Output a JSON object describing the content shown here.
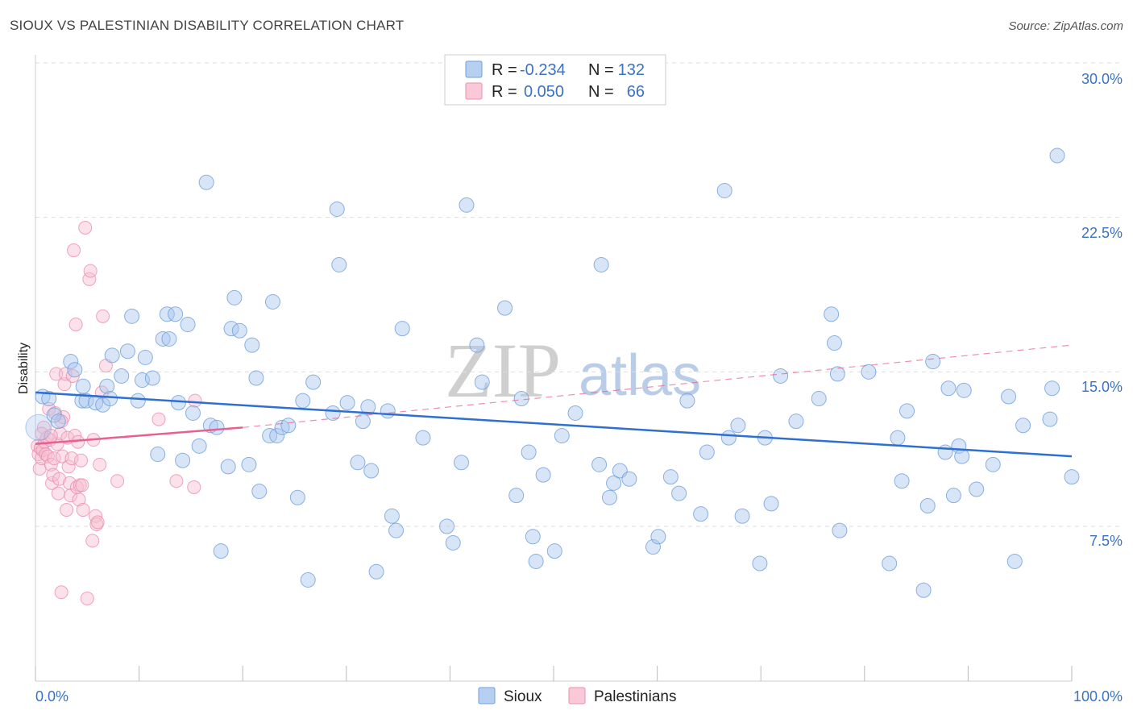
{
  "title": "SIOUX VS PALESTINIAN DISABILITY CORRELATION CHART",
  "source": "Source: ZipAtlas.com",
  "watermark": {
    "zip": "ZIP",
    "atlas": "atlas"
  },
  "legend": {
    "rows": [
      {
        "r_label": "R = ",
        "r_value": "-0.234",
        "n_label": "N = ",
        "n_value": "132"
      },
      {
        "r_label": "R = ",
        "r_value": "0.050",
        "n_label": "N = ",
        "n_value": "66"
      }
    ]
  },
  "bottom_legend": [
    "Sioux",
    "Palestinians"
  ],
  "colors": {
    "sioux": "#a9c6ee",
    "sioux_stroke": "#6f9fdc",
    "sioux_line": "#2e6fd0",
    "pal": "#f6bfd0",
    "pal_stroke": "#ea8fae",
    "pal_line": "#e8608f",
    "grid": "#dddddd",
    "axis_text": "#3a72c4"
  },
  "chart_data": {
    "type": "scatter",
    "title": "SIOUX VS PALESTINIAN DISABILITY CORRELATION CHART",
    "xlabel": "",
    "ylabel": "Disability",
    "xlim": [
      0,
      100
    ],
    "ylim": [
      0,
      31.5
    ],
    "x_tick_labels": [
      "0.0%",
      "100.0%"
    ],
    "y_ticks": [
      7.5,
      15.0,
      22.5,
      30.0
    ],
    "y_tick_labels": [
      "7.5%",
      "15.0%",
      "22.5%",
      "30.0%"
    ],
    "series": [
      {
        "name": "Sioux",
        "R": -0.234,
        "N": 132,
        "trend": {
          "x0": 0,
          "y0": 14.0,
          "x1": 100,
          "y1": 10.9
        },
        "points": [
          [
            0.7,
            13.8
          ],
          [
            1.3,
            13.7
          ],
          [
            1.8,
            12.9
          ],
          [
            2.2,
            12.6
          ],
          [
            3.4,
            15.5
          ],
          [
            3.8,
            15.1
          ],
          [
            4.5,
            13.6
          ],
          [
            4.6,
            14.3
          ],
          [
            4.9,
            13.6
          ],
          [
            5.8,
            13.5
          ],
          [
            6.5,
            13.4
          ],
          [
            6.9,
            14.3
          ],
          [
            7.4,
            15.8
          ],
          [
            8.3,
            14.8
          ],
          [
            8.9,
            16.0
          ],
          [
            9.3,
            17.7
          ],
          [
            9.9,
            13.6
          ],
          [
            10.3,
            14.6
          ],
          [
            10.6,
            15.7
          ],
          [
            11.3,
            14.7
          ],
          [
            11.8,
            11.0
          ],
          [
            12.3,
            16.6
          ],
          [
            12.7,
            17.8
          ],
          [
            12.9,
            16.6
          ],
          [
            13.8,
            13.5
          ],
          [
            14.2,
            10.7
          ],
          [
            14.7,
            17.3
          ],
          [
            15.2,
            13.0
          ],
          [
            15.8,
            11.4
          ],
          [
            16.5,
            24.2
          ],
          [
            16.9,
            12.4
          ],
          [
            17.5,
            12.3
          ],
          [
            17.9,
            6.3
          ],
          [
            18.6,
            10.4
          ],
          [
            18.9,
            17.1
          ],
          [
            19.2,
            18.6
          ],
          [
            19.7,
            17.0
          ],
          [
            20.6,
            10.5
          ],
          [
            20.9,
            16.3
          ],
          [
            21.3,
            14.7
          ],
          [
            21.6,
            9.2
          ],
          [
            22.6,
            11.9
          ],
          [
            22.9,
            18.4
          ],
          [
            23.3,
            11.9
          ],
          [
            23.8,
            12.3
          ],
          [
            24.4,
            12.4
          ],
          [
            25.3,
            8.9
          ],
          [
            25.8,
            13.6
          ],
          [
            26.3,
            4.9
          ],
          [
            26.8,
            14.5
          ],
          [
            28.7,
            13.0
          ],
          [
            29.1,
            22.9
          ],
          [
            29.3,
            20.2
          ],
          [
            30.1,
            13.5
          ],
          [
            31.1,
            10.6
          ],
          [
            31.6,
            12.6
          ],
          [
            32.1,
            13.3
          ],
          [
            32.4,
            10.2
          ],
          [
            32.9,
            5.3
          ],
          [
            34.0,
            13.1
          ],
          [
            34.4,
            8.0
          ],
          [
            34.8,
            7.3
          ],
          [
            35.4,
            17.1
          ],
          [
            39.7,
            7.5
          ],
          [
            40.3,
            6.7
          ],
          [
            41.1,
            10.6
          ],
          [
            41.6,
            23.1
          ],
          [
            42.6,
            16.3
          ],
          [
            43.1,
            14.5
          ],
          [
            45.3,
            18.1
          ],
          [
            46.4,
            9.0
          ],
          [
            46.9,
            13.7
          ],
          [
            47.6,
            11.1
          ],
          [
            48.0,
            7.0
          ],
          [
            48.3,
            5.8
          ],
          [
            49.0,
            10.0
          ],
          [
            50.1,
            6.3
          ],
          [
            50.8,
            11.9
          ],
          [
            52.1,
            13.0
          ],
          [
            54.4,
            10.5
          ],
          [
            54.6,
            20.2
          ],
          [
            55.4,
            8.9
          ],
          [
            55.8,
            9.6
          ],
          [
            56.4,
            10.2
          ],
          [
            57.3,
            9.8
          ],
          [
            59.6,
            6.5
          ],
          [
            60.1,
            7.0
          ],
          [
            61.3,
            9.9
          ],
          [
            62.1,
            9.1
          ],
          [
            62.9,
            13.6
          ],
          [
            64.2,
            8.1
          ],
          [
            64.8,
            11.1
          ],
          [
            66.5,
            23.8
          ],
          [
            66.9,
            11.8
          ],
          [
            67.8,
            12.4
          ],
          [
            68.2,
            8.0
          ],
          [
            69.9,
            5.7
          ],
          [
            70.4,
            11.8
          ],
          [
            71.0,
            8.6
          ],
          [
            71.9,
            14.8
          ],
          [
            73.4,
            12.6
          ],
          [
            75.6,
            13.7
          ],
          [
            76.8,
            17.8
          ],
          [
            77.1,
            16.4
          ],
          [
            77.6,
            7.3
          ],
          [
            77.4,
            14.9
          ],
          [
            80.4,
            15.0
          ],
          [
            82.4,
            5.7
          ],
          [
            83.2,
            11.8
          ],
          [
            83.6,
            9.7
          ],
          [
            84.1,
            13.1
          ],
          [
            85.7,
            4.4
          ],
          [
            86.1,
            8.5
          ],
          [
            86.6,
            15.5
          ],
          [
            87.8,
            11.1
          ],
          [
            88.1,
            14.2
          ],
          [
            88.6,
            9.0
          ],
          [
            89.1,
            11.4
          ],
          [
            89.4,
            10.9
          ],
          [
            89.6,
            14.1
          ],
          [
            90.8,
            9.3
          ],
          [
            92.4,
            10.5
          ],
          [
            93.9,
            13.8
          ],
          [
            94.5,
            5.8
          ],
          [
            95.3,
            12.4
          ],
          [
            97.9,
            12.7
          ],
          [
            98.1,
            14.2
          ],
          [
            98.6,
            25.5
          ],
          [
            100.0,
            9.9
          ],
          [
            13.5,
            17.8
          ],
          [
            7.2,
            13.7
          ],
          [
            37.4,
            11.8
          ]
        ]
      },
      {
        "name": "Palestinians",
        "R": 0.05,
        "N": 66,
        "trend_solid": {
          "x0": 0,
          "y0": 11.5,
          "x1": 20,
          "y1": 12.3
        },
        "trend_dashed": {
          "x0": 20,
          "y0": 12.3,
          "x1": 100,
          "y1": 16.3
        },
        "points": [
          [
            0.2,
            11.4
          ],
          [
            0.3,
            11.0
          ],
          [
            0.4,
            10.3
          ],
          [
            0.5,
            11.3
          ],
          [
            0.6,
            10.8
          ],
          [
            0.7,
            11.2
          ],
          [
            0.8,
            12.3
          ],
          [
            0.9,
            11.6
          ],
          [
            1.0,
            11.0
          ],
          [
            1.1,
            11.8
          ],
          [
            1.2,
            10.9
          ],
          [
            1.3,
            13.2
          ],
          [
            1.4,
            11.7
          ],
          [
            1.5,
            10.5
          ],
          [
            1.6,
            9.6
          ],
          [
            1.7,
            10.0
          ],
          [
            1.8,
            10.8
          ],
          [
            1.9,
            13.0
          ],
          [
            2.0,
            14.9
          ],
          [
            2.1,
            11.5
          ],
          [
            2.2,
            9.1
          ],
          [
            2.3,
            9.8
          ],
          [
            2.4,
            12.0
          ],
          [
            2.5,
            4.3
          ],
          [
            2.6,
            10.9
          ],
          [
            2.7,
            12.8
          ],
          [
            2.8,
            14.4
          ],
          [
            2.9,
            14.9
          ],
          [
            3.0,
            8.3
          ],
          [
            3.1,
            11.8
          ],
          [
            3.2,
            10.4
          ],
          [
            3.3,
            9.6
          ],
          [
            3.4,
            9.0
          ],
          [
            3.5,
            10.8
          ],
          [
            3.6,
            14.8
          ],
          [
            3.7,
            20.9
          ],
          [
            3.8,
            11.9
          ],
          [
            3.9,
            17.3
          ],
          [
            4.0,
            9.4
          ],
          [
            4.1,
            11.6
          ],
          [
            4.2,
            8.8
          ],
          [
            4.3,
            9.5
          ],
          [
            4.4,
            10.7
          ],
          [
            4.5,
            9.5
          ],
          [
            4.6,
            8.3
          ],
          [
            4.8,
            22.0
          ],
          [
            5.0,
            4.0
          ],
          [
            5.2,
            19.5
          ],
          [
            5.3,
            19.9
          ],
          [
            5.5,
            6.8
          ],
          [
            5.6,
            11.7
          ],
          [
            5.8,
            8.0
          ],
          [
            5.9,
            7.6
          ],
          [
            6.0,
            7.7
          ],
          [
            6.2,
            10.5
          ],
          [
            6.4,
            14.0
          ],
          [
            6.5,
            17.7
          ],
          [
            6.8,
            15.3
          ],
          [
            7.9,
            9.7
          ],
          [
            11.9,
            12.7
          ],
          [
            13.6,
            9.7
          ],
          [
            15.3,
            9.4
          ],
          [
            15.4,
            13.6
          ],
          [
            0.6,
            12.0
          ],
          [
            1.5,
            11.9
          ],
          [
            2.5,
            12.6
          ]
        ]
      }
    ]
  }
}
